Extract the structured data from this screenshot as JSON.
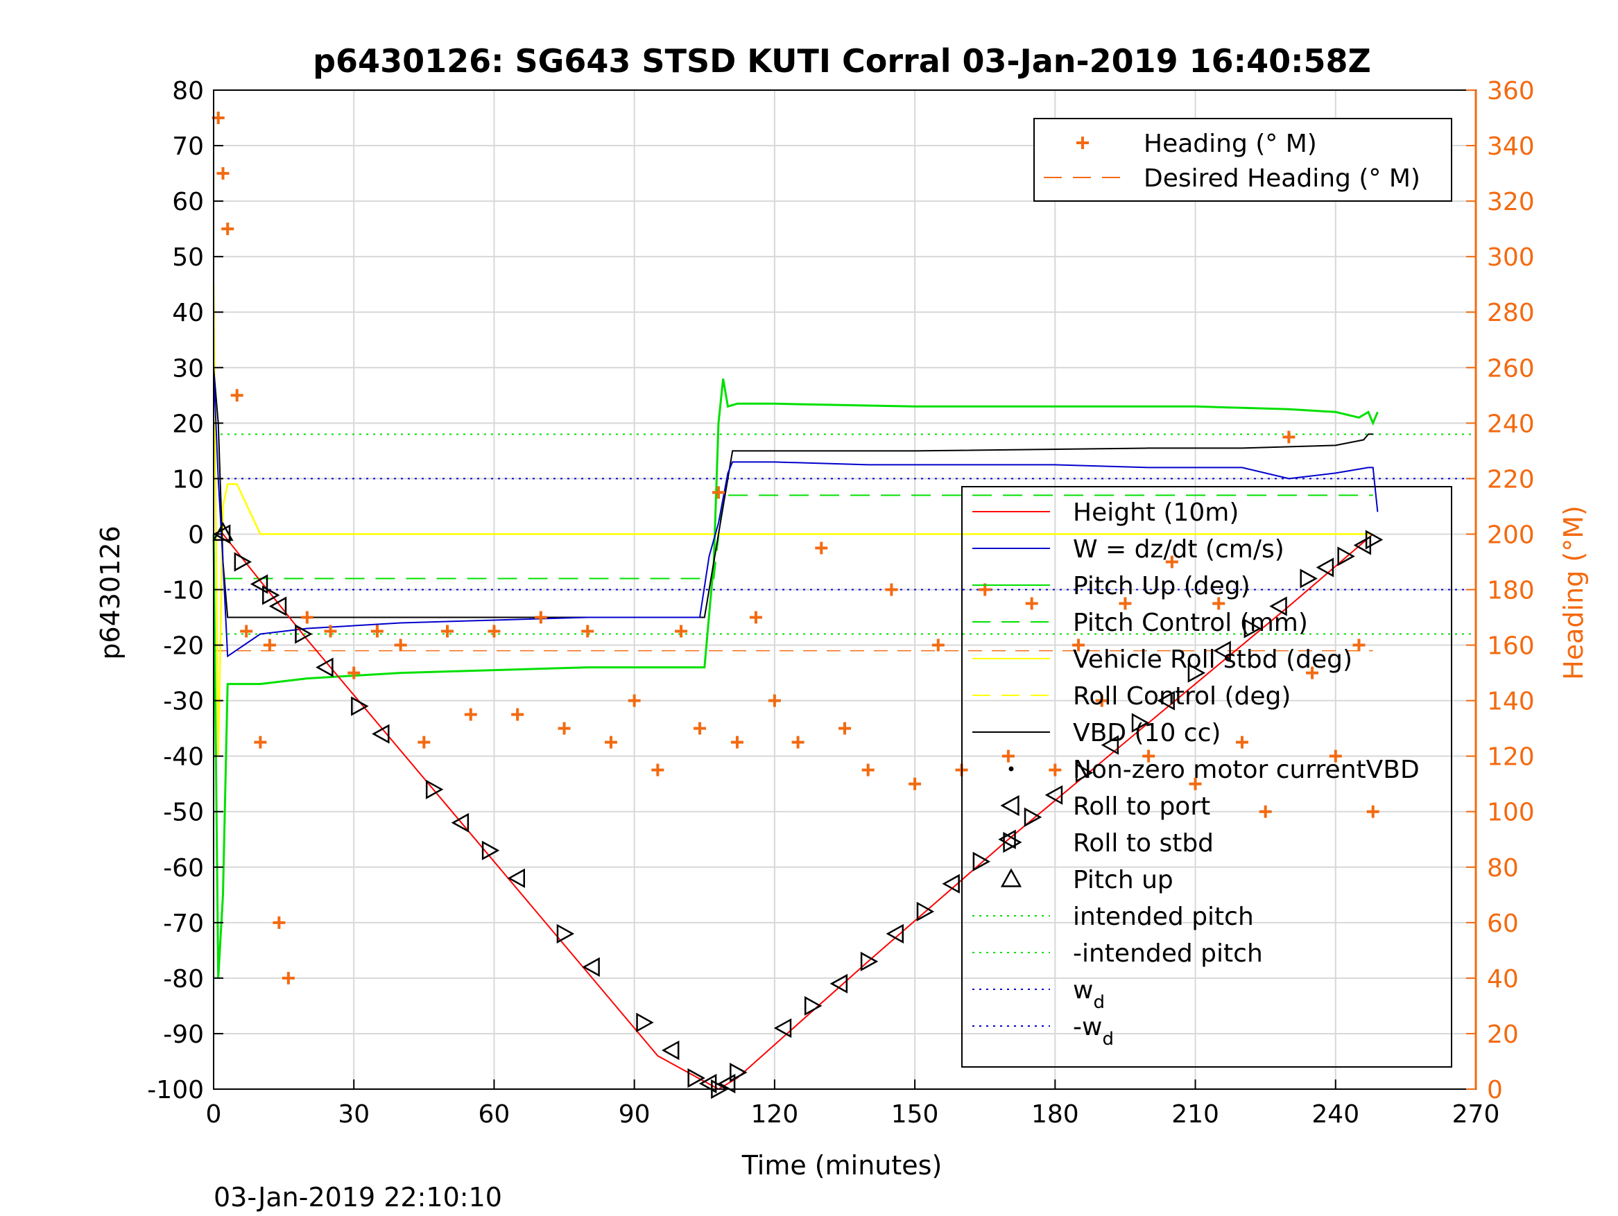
{
  "chart_data": {
    "type": "line",
    "title": "p6430126: SG643 STSD KUTI Corral 03-Jan-2019 16:40:58Z",
    "xlabel": "Time (minutes)",
    "ylabel": "p6430126",
    "y2label": "Heading (°M)",
    "footer": "03-Jan-2019 22:10:10",
    "xlim": [
      0,
      270
    ],
    "ylim": [
      -100,
      80
    ],
    "y2lim": [
      0,
      360
    ],
    "x_ticks": [
      "0",
      "30",
      "60",
      "90",
      "120",
      "150",
      "180",
      "210",
      "240",
      "270"
    ],
    "y_ticks": [
      "-100",
      "-90",
      "-80",
      "-70",
      "-60",
      "-50",
      "-40",
      "-30",
      "-20",
      "-10",
      "0",
      "10",
      "20",
      "30",
      "40",
      "50",
      "60",
      "70",
      "80"
    ],
    "y2_ticks": [
      "0",
      "20",
      "40",
      "60",
      "80",
      "100",
      "120",
      "140",
      "160",
      "180",
      "200",
      "220",
      "240",
      "260",
      "280",
      "300",
      "320",
      "340",
      "360"
    ],
    "grid": true,
    "colors": {
      "height": "#FF0000",
      "w": "#0000CC",
      "pitch": "#00E000",
      "roll": "#FFFF00",
      "vbd": "#000000",
      "heading": "#F36A10",
      "grid": "#D8D8D8"
    },
    "legend_top": [
      {
        "label": "Heading (° M)",
        "style": "plus",
        "color": "#F36A10"
      },
      {
        "label": "Desired Heading (° M)",
        "style": "dash",
        "color": "#F36A10"
      }
    ],
    "legend_main": [
      {
        "label": "Height (10m)",
        "style": "line",
        "color": "#FF0000"
      },
      {
        "label": "W = dz/dt (cm/s)",
        "style": "line",
        "color": "#0000CC"
      },
      {
        "label": "Pitch Up (deg)",
        "style": "line",
        "color": "#00E000"
      },
      {
        "label": "Pitch Control (mm)",
        "style": "dash",
        "color": "#00E000"
      },
      {
        "label": "Vehicle Roll stbd (deg)",
        "style": "line",
        "color": "#FFFF00"
      },
      {
        "label": "Roll Control (deg)",
        "style": "dash",
        "color": "#FFFF00"
      },
      {
        "label": "VBD (10 cc)",
        "style": "line",
        "color": "#000000"
      },
      {
        "label": "Non-zero motor currentVBD",
        "style": "dot",
        "color": "#000000"
      },
      {
        "label": "Roll to port",
        "style": "tri-left",
        "color": "#000000"
      },
      {
        "label": "Roll to stbd",
        "style": "tri-right",
        "color": "#000000"
      },
      {
        "label": "Pitch up",
        "style": "tri-up",
        "color": "#000000"
      },
      {
        "label": "intended pitch",
        "style": "dotted",
        "color": "#00E000"
      },
      {
        "label": "-intended pitch",
        "style": "dotted",
        "color": "#00E000"
      },
      {
        "label": "w",
        "sub": "d",
        "style": "dotted",
        "color": "#0000CC"
      },
      {
        "label": "-w",
        "sub": "d",
        "style": "dotted",
        "color": "#0000CC"
      }
    ],
    "series": [
      {
        "name": "Height (10m)",
        "x": [
          0,
          2,
          20,
          50,
          80,
          95,
          108,
          112,
          140,
          170,
          200,
          230,
          248
        ],
        "y": [
          0,
          0,
          -19,
          -49,
          -79,
          -94,
          -100,
          -98,
          -77,
          -55,
          -34,
          -13,
          0
        ]
      },
      {
        "name": "W = dz/dt (cm/s)",
        "x": [
          0,
          1,
          2,
          3,
          10,
          20,
          40,
          60,
          80,
          100,
          104,
          106,
          108,
          110,
          111,
          120,
          140,
          160,
          180,
          200,
          220,
          230,
          240,
          247,
          248,
          249
        ],
        "y": [
          30,
          10,
          -5,
          -22,
          -18,
          -17,
          -16,
          -15.5,
          -15,
          -15,
          -15,
          -4,
          2,
          11,
          13,
          13,
          12.5,
          12.5,
          12.5,
          12,
          12,
          10,
          11,
          12,
          12,
          4
        ]
      },
      {
        "name": "Pitch Up (deg)",
        "x": [
          0,
          1,
          2,
          3,
          5,
          10,
          20,
          40,
          60,
          80,
          100,
          105,
          107,
          108,
          109,
          110,
          112,
          120,
          150,
          180,
          210,
          230,
          240,
          245,
          247,
          248,
          249
        ],
        "y": [
          0,
          -80,
          -65,
          -27,
          -27,
          -27,
          -26,
          -25,
          -24.5,
          -24,
          -24,
          -24,
          -5,
          20,
          28,
          23,
          23.5,
          23.5,
          23,
          23,
          23,
          22.5,
          22,
          21,
          22,
          20,
          22
        ]
      },
      {
        "name": "Pitch Control (mm)",
        "x": [
          2,
          107,
          109,
          248
        ],
        "y": [
          -8,
          -8,
          7,
          7
        ]
      },
      {
        "name": "Vehicle Roll stbd (deg)",
        "x": [
          0,
          1,
          2,
          3,
          5,
          10,
          20,
          40,
          60,
          80,
          100,
          105,
          108,
          112,
          150,
          200,
          248
        ],
        "y": [
          45,
          -40,
          5,
          9,
          9,
          0,
          0,
          0,
          0,
          0,
          0,
          0,
          0,
          0,
          0,
          0,
          0
        ]
      },
      {
        "name": "VBD (10 cc)",
        "x": [
          0,
          1,
          2,
          3,
          105,
          108,
          111,
          120,
          150,
          200,
          220,
          240,
          246,
          247,
          248
        ],
        "y": [
          30,
          20,
          -5,
          -15,
          -15,
          0,
          15,
          15,
          15,
          15.5,
          15.5,
          16,
          17,
          18,
          18
        ]
      },
      {
        "name": "Heading (° M)",
        "x": [
          1,
          2,
          3,
          5,
          7,
          10,
          12,
          14,
          16,
          20,
          25,
          30,
          35,
          40,
          45,
          50,
          55,
          60,
          65,
          70,
          75,
          80,
          85,
          90,
          95,
          100,
          104,
          108,
          112,
          116,
          120,
          125,
          130,
          135,
          140,
          145,
          150,
          155,
          160,
          165,
          170,
          175,
          180,
          185,
          190,
          195,
          200,
          205,
          210,
          215,
          220,
          225,
          230,
          235,
          240,
          245,
          248
        ],
        "y": [
          350,
          330,
          310,
          250,
          165,
          125,
          160,
          60,
          40,
          170,
          165,
          150,
          165,
          160,
          125,
          165,
          135,
          165,
          135,
          170,
          130,
          165,
          125,
          140,
          115,
          165,
          130,
          215,
          125,
          170,
          140,
          125,
          195,
          130,
          115,
          180,
          110,
          160,
          115,
          180,
          120,
          175,
          115,
          160,
          140,
          175,
          120,
          190,
          110,
          175,
          125,
          100,
          235,
          150,
          120,
          160,
          100
        ]
      },
      {
        "name": "Desired Heading (° M)",
        "x": [
          0,
          248
        ],
        "y": [
          158,
          158
        ]
      }
    ],
    "reference_lines": [
      {
        "name": "intended pitch",
        "y": 18,
        "color": "#00E000"
      },
      {
        "name": "-intended pitch",
        "y": -18,
        "color": "#00E000"
      },
      {
        "name": "w_d",
        "y": 10,
        "color": "#0000CC"
      },
      {
        "name": "-w_d",
        "y": -10,
        "color": "#0000CC"
      }
    ],
    "markers": {
      "x": [
        2,
        6,
        10,
        12,
        14,
        19,
        24,
        31,
        36,
        47,
        53,
        59,
        65,
        75,
        81,
        92,
        98,
        103,
        106,
        108,
        110,
        112,
        122,
        128,
        134,
        140,
        146,
        152,
        158,
        164,
        170,
        175,
        180,
        186,
        192,
        198,
        204,
        210,
        216,
        222,
        228,
        234,
        238,
        242,
        246,
        248
      ],
      "y": [
        0,
        -5,
        -9,
        -11,
        -13,
        -18,
        -24,
        -31,
        -36,
        -46,
        -52,
        -57,
        -62,
        -72,
        -78,
        -88,
        -93,
        -98,
        -99,
        -100,
        -99,
        -97,
        -89,
        -85,
        -81,
        -77,
        -72,
        -68,
        -63,
        -59,
        -55,
        -51,
        -47,
        -43,
        -38,
        -34,
        -30,
        -25,
        -21,
        -17,
        -13,
        -8,
        -6,
        -4,
        -2,
        -1
      ]
    }
  }
}
